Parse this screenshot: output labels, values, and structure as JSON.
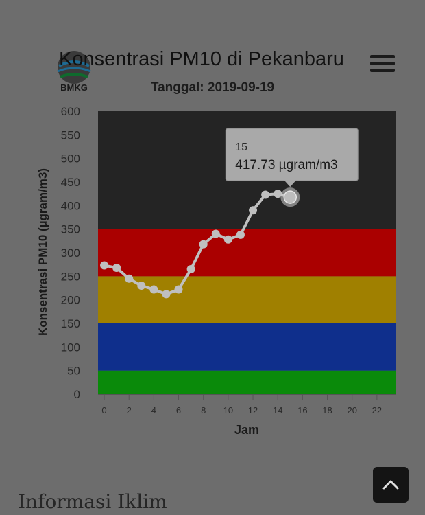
{
  "logo": {
    "text": "BMKG",
    "icon": "bmkg-logo-icon"
  },
  "menu": {
    "icon": "hamburger-menu-icon"
  },
  "chart_data": {
    "type": "line",
    "title": "Konsentrasi PM10 di Pekanbaru",
    "subtitle": "Tanggal: 2019-09-19",
    "xlabel": "Jam",
    "ylabel": "Konsentrasi PM10 (µgram/m3)",
    "xlim": [
      -0.5,
      23.5
    ],
    "ylim": [
      0,
      600
    ],
    "x_ticks": [
      0,
      2,
      4,
      6,
      8,
      10,
      12,
      14,
      16,
      18,
      20,
      22
    ],
    "y_ticks": [
      0,
      50,
      100,
      150,
      200,
      250,
      300,
      350,
      400,
      450,
      500,
      550,
      600
    ],
    "bands": [
      {
        "from": 0,
        "to": 50,
        "color": "#0a8a0a"
      },
      {
        "from": 50,
        "to": 150,
        "color": "#0f2f8c"
      },
      {
        "from": 150,
        "to": 250,
        "color": "#a08000"
      },
      {
        "from": 250,
        "to": 350,
        "color": "#aa0000"
      },
      {
        "from": 350,
        "to": 600,
        "color": "#242424"
      }
    ],
    "series": [
      {
        "color": "#bfbfbf",
        "x": [
          0,
          1,
          2,
          3,
          4,
          5,
          6,
          7,
          8,
          9,
          10,
          11,
          12,
          13,
          14,
          15
        ],
        "y": [
          273,
          268,
          245,
          230,
          222,
          212,
          222,
          265,
          318,
          340,
          328,
          338,
          390,
          423,
          425,
          417.73
        ]
      }
    ],
    "tooltip": {
      "x_label": "15",
      "value_label": "417.73 µgram/m3",
      "index": 15
    }
  },
  "footer": {
    "section_heading": "Informasi Iklim",
    "scroll_top_icon": "chevron-up-icon"
  }
}
